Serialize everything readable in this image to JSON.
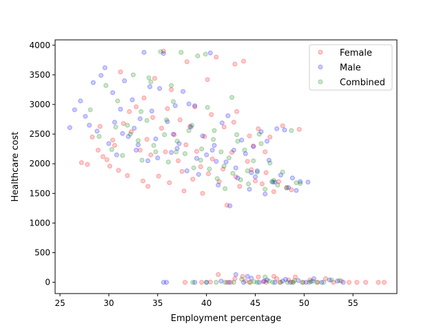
{
  "chart_data": {
    "type": "scatter",
    "xlabel": "Employment percentage",
    "ylabel": "Healthcare cost",
    "xlim": [
      24.5,
      59.5
    ],
    "ylim": [
      -190,
      4090
    ],
    "xticks": [
      25,
      30,
      35,
      40,
      45,
      50,
      55
    ],
    "yticks": [
      0,
      500,
      1000,
      1500,
      2000,
      2500,
      3000,
      3500,
      4000
    ],
    "grid": false,
    "legend_position": "top-right",
    "series": [
      {
        "name": "Female",
        "color": "#ff0000",
        "points": [
          [
            27.2,
            2020
          ],
          [
            27.8,
            1990
          ],
          [
            28.3,
            2450
          ],
          [
            28.9,
            2230
          ],
          [
            29.4,
            2120
          ],
          [
            29.8,
            2070
          ],
          [
            30.1,
            1960
          ],
          [
            30.6,
            2310
          ],
          [
            31.0,
            1890
          ],
          [
            31.5,
            2680
          ],
          [
            31.9,
            1800
          ],
          [
            32.3,
            2540
          ],
          [
            32.8,
            2960
          ],
          [
            33.2,
            2230
          ],
          [
            33.5,
            1710
          ],
          [
            33.9,
            2410
          ],
          [
            34.3,
            2150
          ],
          [
            34.7,
            3440
          ],
          [
            35.1,
            1790
          ],
          [
            35.4,
            2600
          ],
          [
            35.8,
            2200
          ],
          [
            36.2,
            1680
          ],
          [
            36.7,
            2490
          ],
          [
            37.1,
            2050
          ],
          [
            37.5,
            1870
          ],
          [
            37.9,
            2320
          ],
          [
            38.3,
            2630
          ],
          [
            38.6,
            1740
          ],
          [
            39.0,
            2210
          ],
          [
            39.4,
            1950
          ],
          [
            39.8,
            2460
          ],
          [
            40.2,
            1830
          ],
          [
            40.6,
            2080
          ],
          [
            41.0,
            3800
          ],
          [
            41.3,
            1700
          ],
          [
            41.7,
            1910
          ],
          [
            42.1,
            1300
          ],
          [
            42.6,
            2190
          ],
          [
            43.0,
            1780
          ],
          [
            43.4,
            1620
          ],
          [
            43.8,
            3730
          ],
          [
            44.2,
            2040
          ],
          [
            44.6,
            1900
          ],
          [
            45.0,
            1710
          ],
          [
            45.3,
            2590
          ],
          [
            45.7,
            1660
          ],
          [
            46.1,
            1850
          ],
          [
            46.5,
            2450
          ],
          [
            46.9,
            1530
          ],
          [
            47.4,
            1700
          ],
          [
            47.8,
            2640
          ],
          [
            48.2,
            1600
          ],
          [
            48.7,
            1560
          ],
          [
            49.5,
            2580
          ],
          [
            32.1,
            2880
          ],
          [
            33.6,
            3110
          ],
          [
            34.5,
            2780
          ],
          [
            36.0,
            2930
          ],
          [
            37.3,
            2740
          ],
          [
            38.8,
            2960
          ],
          [
            40.5,
            2830
          ],
          [
            41.8,
            2620
          ],
          [
            43.1,
            2880
          ],
          [
            44.4,
            2470
          ],
          [
            31.2,
            3550
          ],
          [
            36.4,
            3250
          ],
          [
            40.1,
            3420
          ],
          [
            42.9,
            3680
          ],
          [
            35.6,
            3900
          ],
          [
            38.0,
            3720
          ],
          [
            42.8,
            2700
          ],
          [
            44.8,
            2300
          ],
          [
            46.0,
            2200
          ],
          [
            30.4,
            2400
          ],
          [
            29.1,
            2630
          ],
          [
            37.7,
            1540
          ],
          [
            39.6,
            1500
          ],
          [
            34.0,
            1620
          ],
          [
            37.8,
            0
          ],
          [
            39.5,
            0
          ],
          [
            40.4,
            5
          ],
          [
            41.2,
            130
          ],
          [
            42.1,
            0
          ],
          [
            42.9,
            60
          ],
          [
            43.7,
            100
          ],
          [
            44.5,
            0
          ],
          [
            45.3,
            90
          ],
          [
            46.1,
            0
          ],
          [
            46.9,
            100
          ],
          [
            47.6,
            0
          ],
          [
            48.4,
            40
          ],
          [
            49.1,
            90
          ],
          [
            49.9,
            0
          ],
          [
            50.6,
            40
          ],
          [
            51.4,
            0
          ],
          [
            52.2,
            60
          ],
          [
            53.0,
            0
          ],
          [
            53.8,
            20
          ],
          [
            54.6,
            0
          ],
          [
            55.4,
            0
          ],
          [
            56.3,
            0
          ],
          [
            57.6,
            0
          ],
          [
            58.2,
            0
          ],
          [
            42.5,
            0
          ],
          [
            44.0,
            20
          ],
          [
            45.8,
            10
          ],
          [
            47.2,
            60
          ],
          [
            48.8,
            0
          ]
        ]
      },
      {
        "name": "Male",
        "color": "#0000ff",
        "points": [
          [
            26.0,
            2610
          ],
          [
            26.5,
            2910
          ],
          [
            27.1,
            3060
          ],
          [
            27.6,
            2800
          ],
          [
            28.0,
            2650
          ],
          [
            28.4,
            3370
          ],
          [
            28.8,
            2550
          ],
          [
            29.2,
            3490
          ],
          [
            29.6,
            3620
          ],
          [
            30.0,
            2340
          ],
          [
            30.4,
            3200
          ],
          [
            30.8,
            2150
          ],
          [
            31.2,
            2920
          ],
          [
            31.6,
            3400
          ],
          [
            32.0,
            2460
          ],
          [
            32.4,
            3080
          ],
          [
            32.8,
            2230
          ],
          [
            33.2,
            2760
          ],
          [
            33.6,
            3880
          ],
          [
            34.0,
            2050
          ],
          [
            34.4,
            2890
          ],
          [
            34.8,
            2420
          ],
          [
            35.2,
            3270
          ],
          [
            35.6,
            3860
          ],
          [
            36.0,
            2710
          ],
          [
            36.4,
            2190
          ],
          [
            36.8,
            2980
          ],
          [
            37.2,
            2340
          ],
          [
            37.6,
            3220
          ],
          [
            38.0,
            1880
          ],
          [
            38.4,
            2620
          ],
          [
            38.8,
            2980
          ],
          [
            39.2,
            1820
          ],
          [
            39.6,
            2470
          ],
          [
            40.0,
            2150
          ],
          [
            40.4,
            3870
          ],
          [
            40.8,
            2310
          ],
          [
            41.2,
            1640
          ],
          [
            41.6,
            2690
          ],
          [
            42.0,
            2030
          ],
          [
            42.4,
            1290
          ],
          [
            42.8,
            2230
          ],
          [
            43.2,
            1760
          ],
          [
            43.6,
            2400
          ],
          [
            44.0,
            2170
          ],
          [
            44.4,
            1570
          ],
          [
            44.8,
            2290
          ],
          [
            45.2,
            1880
          ],
          [
            45.6,
            2540
          ],
          [
            46.0,
            1490
          ],
          [
            46.4,
            2060
          ],
          [
            46.8,
            1690
          ],
          [
            47.2,
            2590
          ],
          [
            47.6,
            1810
          ],
          [
            48.0,
            2570
          ],
          [
            48.4,
            1600
          ],
          [
            48.8,
            1760
          ],
          [
            49.2,
            1550
          ],
          [
            49.6,
            1700
          ],
          [
            50.4,
            1690
          ],
          [
            31.4,
            2510
          ],
          [
            33.0,
            2320
          ],
          [
            35.0,
            2100
          ],
          [
            37.0,
            2260
          ],
          [
            39.0,
            2090
          ],
          [
            41.0,
            2040
          ],
          [
            43.0,
            1930
          ],
          [
            45.0,
            1780
          ],
          [
            47.0,
            1690
          ],
          [
            30.6,
            2700
          ],
          [
            32.6,
            2600
          ],
          [
            36.6,
            2500
          ],
          [
            40.6,
            2230
          ],
          [
            44.6,
            1850
          ],
          [
            34.2,
            3300
          ],
          [
            38.2,
            3010
          ],
          [
            42.2,
            2810
          ],
          [
            46.2,
            2380
          ],
          [
            35.6,
            0
          ],
          [
            35.9,
            0
          ],
          [
            38.8,
            0
          ],
          [
            40.0,
            0
          ],
          [
            41.5,
            20
          ],
          [
            42.3,
            0
          ],
          [
            43.0,
            130
          ],
          [
            43.8,
            0
          ],
          [
            44.6,
            70
          ],
          [
            45.4,
            0
          ],
          [
            46.2,
            40
          ],
          [
            47.0,
            0
          ],
          [
            47.8,
            20
          ],
          [
            48.6,
            0
          ],
          [
            49.4,
            30
          ],
          [
            50.2,
            0
          ],
          [
            51.0,
            60
          ],
          [
            51.8,
            0
          ],
          [
            52.6,
            40
          ],
          [
            53.4,
            20
          ],
          [
            54.0,
            0
          ],
          [
            44.2,
            100
          ],
          [
            45.9,
            20
          ],
          [
            48.1,
            50
          ],
          [
            50.7,
            10
          ]
        ]
      },
      {
        "name": "Combined",
        "color": "#008000",
        "points": [
          [
            28.1,
            2910
          ],
          [
            29.0,
            2460
          ],
          [
            29.7,
            3320
          ],
          [
            30.3,
            2240
          ],
          [
            30.9,
            3060
          ],
          [
            31.4,
            2140
          ],
          [
            31.9,
            2650
          ],
          [
            32.5,
            3500
          ],
          [
            33.0,
            2390
          ],
          [
            33.4,
            2060
          ],
          [
            33.9,
            2730
          ],
          [
            34.3,
            3380
          ],
          [
            34.8,
            2200
          ],
          [
            35.3,
            3890
          ],
          [
            35.7,
            2490
          ],
          [
            36.1,
            2030
          ],
          [
            36.6,
            3050
          ],
          [
            37.0,
            2380
          ],
          [
            37.4,
            3880
          ],
          [
            37.8,
            2170
          ],
          [
            38.2,
            2560
          ],
          [
            38.7,
            1930
          ],
          [
            39.1,
            3820
          ],
          [
            39.5,
            2250
          ],
          [
            39.9,
            3850
          ],
          [
            40.3,
            1910
          ],
          [
            40.7,
            2410
          ],
          [
            41.1,
            1750
          ],
          [
            41.5,
            2200
          ],
          [
            41.9,
            1580
          ],
          [
            42.3,
            2100
          ],
          [
            42.7,
            1840
          ],
          [
            43.1,
            2490
          ],
          [
            43.5,
            1730
          ],
          [
            43.9,
            2230
          ],
          [
            44.3,
            1660
          ],
          [
            44.8,
            2050
          ],
          [
            45.2,
            1860
          ],
          [
            45.6,
            2340
          ],
          [
            46.0,
            1570
          ],
          [
            46.5,
            2010
          ],
          [
            46.9,
            1720
          ],
          [
            47.3,
            1640
          ],
          [
            47.8,
            1860
          ],
          [
            48.2,
            1590
          ],
          [
            48.7,
            2560
          ],
          [
            49.2,
            1680
          ],
          [
            49.6,
            1670
          ],
          [
            32.2,
            2500
          ],
          [
            34.6,
            2310
          ],
          [
            36.9,
            2200
          ],
          [
            39.4,
            2060
          ],
          [
            41.8,
            1960
          ],
          [
            44.2,
            1880
          ],
          [
            46.7,
            1700
          ],
          [
            30.7,
            2620
          ],
          [
            33.3,
            2880
          ],
          [
            35.9,
            2740
          ],
          [
            38.5,
            2650
          ],
          [
            40.8,
            2560
          ],
          [
            43.2,
            2380
          ],
          [
            34.1,
            3450
          ],
          [
            36.4,
            3320
          ],
          [
            42.6,
            3120
          ],
          [
            45.4,
            2500
          ],
          [
            40.1,
            2950
          ],
          [
            38.6,
            0
          ],
          [
            40.0,
            0
          ],
          [
            41.0,
            0
          ],
          [
            41.9,
            0
          ],
          [
            42.8,
            0
          ],
          [
            43.6,
            50
          ],
          [
            44.4,
            0
          ],
          [
            45.2,
            0
          ],
          [
            46.0,
            90
          ],
          [
            46.8,
            0
          ],
          [
            47.5,
            0
          ],
          [
            48.3,
            0
          ],
          [
            49.0,
            30
          ],
          [
            49.8,
            0
          ],
          [
            50.5,
            0
          ],
          [
            51.3,
            0
          ],
          [
            52.0,
            0
          ],
          [
            52.8,
            40
          ],
          [
            53.6,
            30
          ],
          [
            44.9,
            10
          ],
          [
            46.4,
            20
          ],
          [
            48.9,
            0
          ],
          [
            50.9,
            20
          ]
        ]
      }
    ]
  }
}
